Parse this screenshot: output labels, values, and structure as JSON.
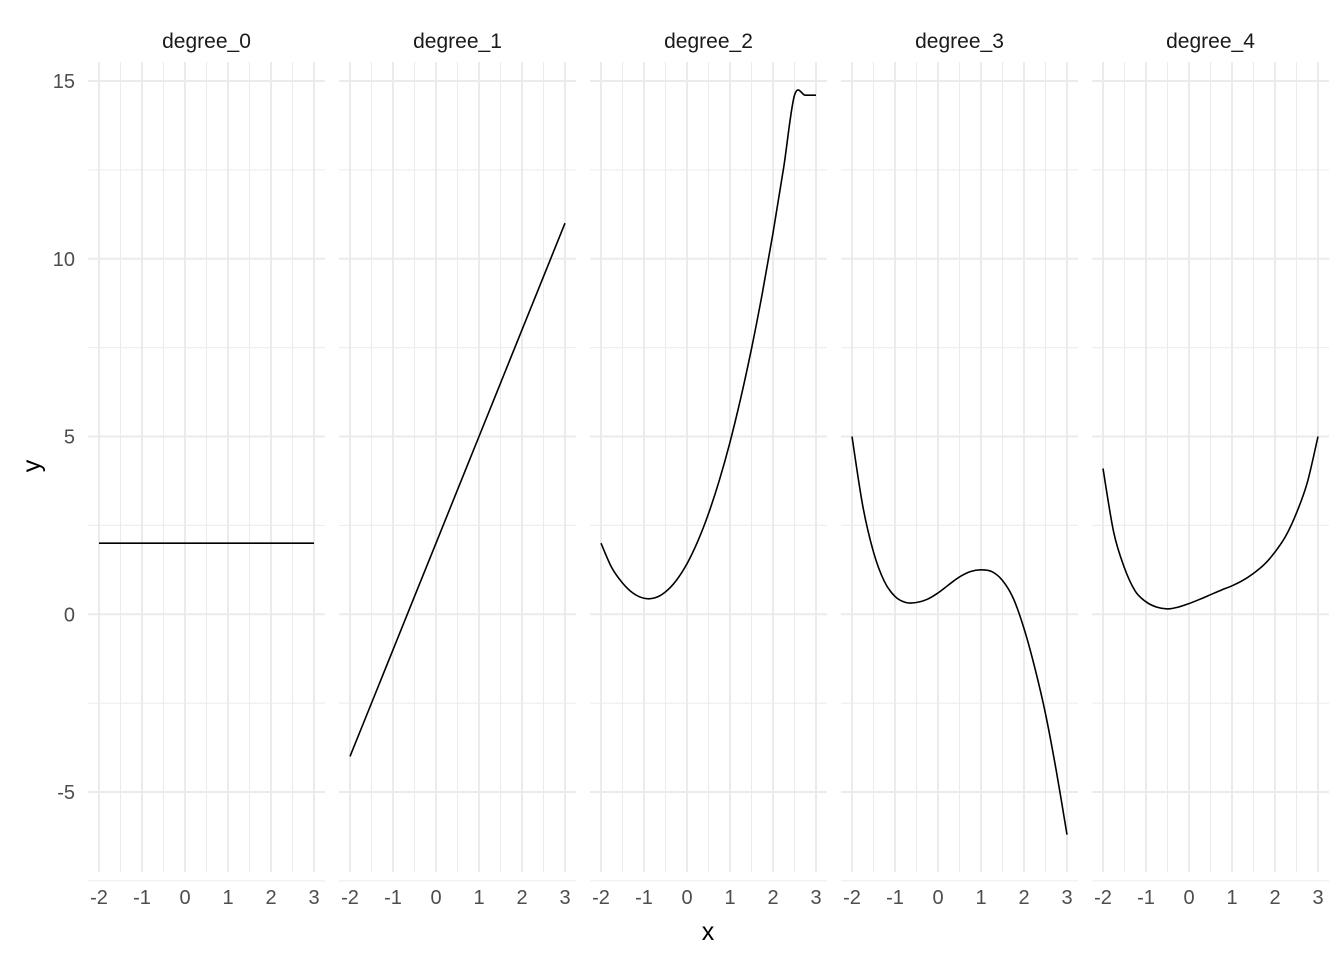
{
  "chart_data": {
    "type": "line",
    "layout": "faceted",
    "xlabel": "x",
    "ylabel": "y",
    "xlim": [
      -2,
      3
    ],
    "ylim": [
      -7,
      15
    ],
    "x_ticks": [
      -2,
      -1,
      0,
      1,
      2,
      3
    ],
    "y_ticks": [
      -5,
      0,
      5,
      10,
      15
    ],
    "grid": true,
    "line_color": "#000000",
    "grid_color": "#ebebeb",
    "panels": [
      {
        "title": "degree_0",
        "x": [
          -2,
          -1.5,
          -1,
          -0.5,
          0,
          0.5,
          1,
          1.5,
          2,
          2.5,
          3
        ],
        "y": [
          2,
          2,
          2,
          2,
          2,
          2,
          2,
          2,
          2,
          2,
          2
        ]
      },
      {
        "title": "degree_1",
        "x": [
          -2,
          -1.5,
          -1,
          -0.5,
          0,
          0.5,
          1,
          1.5,
          2,
          2.5,
          3
        ],
        "y": [
          -4,
          -2.5,
          -1,
          0.5,
          2,
          3.5,
          5,
          6.5,
          8,
          9.5,
          11
        ]
      },
      {
        "title": "degree_2",
        "x": [
          -2,
          -1.75,
          -1.5,
          -1.25,
          -1,
          -0.75,
          -0.5,
          -0.25,
          0,
          0.25,
          0.5,
          0.75,
          1,
          1.25,
          1.5,
          1.75,
          2,
          2.25,
          2.5,
          2.75,
          3
        ],
        "y": [
          2,
          1.31,
          0.88,
          0.59,
          0.45,
          0.46,
          0.63,
          0.95,
          1.42,
          2.05,
          2.83,
          3.76,
          4.84,
          6.08,
          7.47,
          9.02,
          10.72,
          12.58,
          14.6,
          14.6,
          14.6
        ]
      },
      {
        "title": "degree_3",
        "x": [
          -2,
          -1.75,
          -1.5,
          -1.25,
          -1,
          -0.75,
          -0.5,
          -0.25,
          0,
          0.25,
          0.5,
          0.75,
          1,
          1.25,
          1.5,
          1.75,
          2,
          2.25,
          2.5,
          2.75,
          3
        ],
        "y": [
          5,
          3.05,
          1.75,
          0.93,
          0.5,
          0.33,
          0.33,
          0.42,
          0.6,
          0.83,
          1.05,
          1.2,
          1.25,
          1.2,
          0.95,
          0.45,
          -0.4,
          -1.5,
          -2.8,
          -4.4,
          -6.2
        ]
      },
      {
        "title": "degree_4",
        "x": [
          -2,
          -1.75,
          -1.5,
          -1.25,
          -1,
          -0.75,
          -0.5,
          -0.25,
          0,
          0.25,
          0.5,
          0.75,
          1,
          1.25,
          1.5,
          1.75,
          2,
          2.25,
          2.5,
          2.75,
          3
        ],
        "y": [
          4.1,
          2.3,
          1.3,
          0.65,
          0.35,
          0.2,
          0.15,
          0.2,
          0.3,
          0.42,
          0.55,
          0.68,
          0.8,
          0.95,
          1.15,
          1.4,
          1.75,
          2.2,
          2.85,
          3.7,
          5
        ]
      }
    ]
  }
}
